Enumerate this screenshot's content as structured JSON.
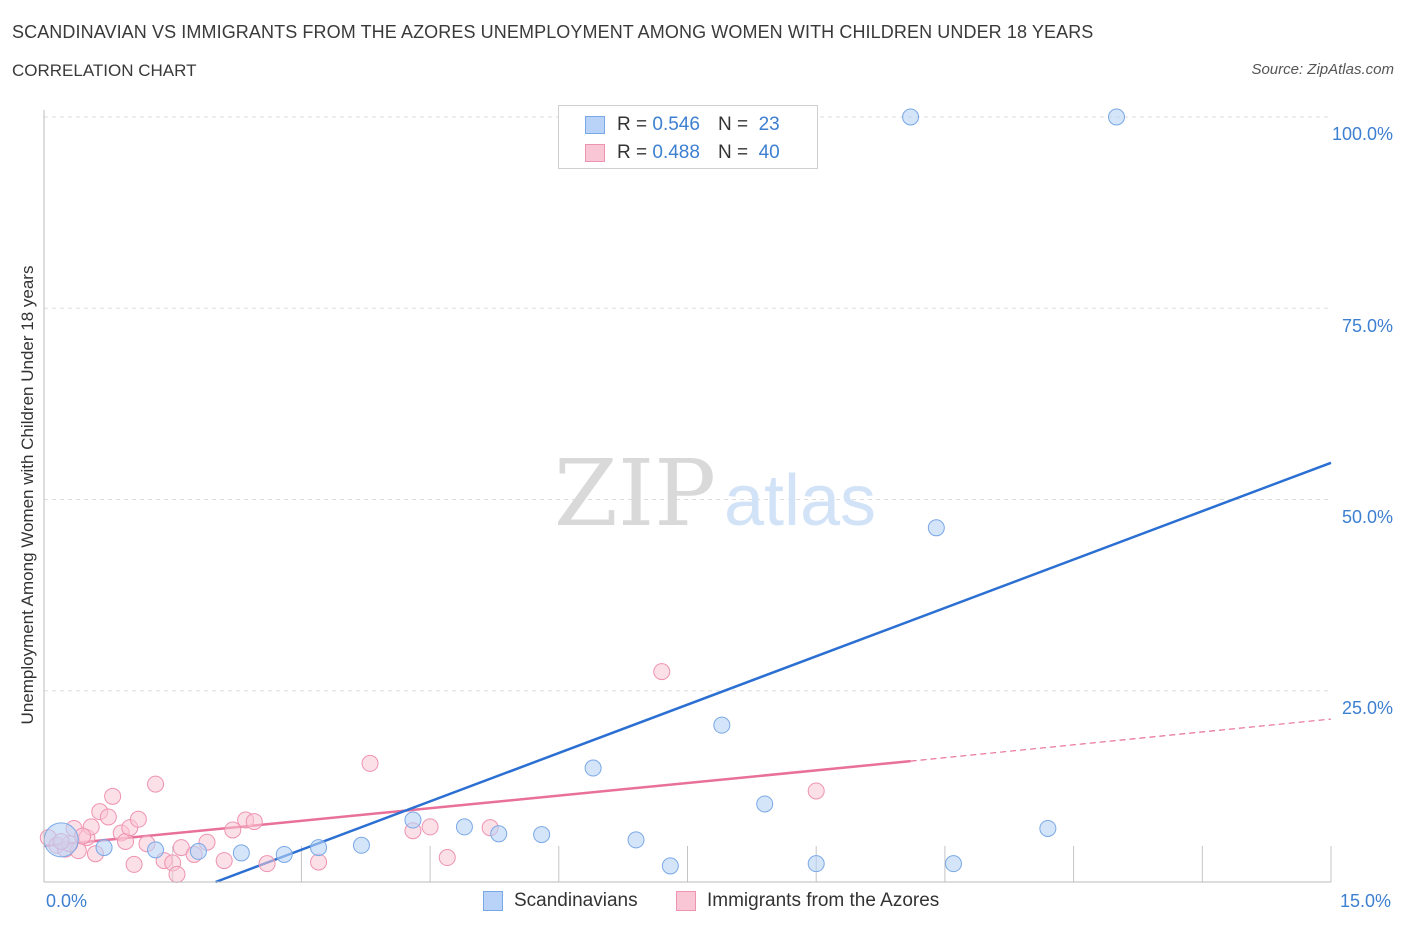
{
  "header": {
    "title": "SCANDINAVIAN VS IMMIGRANTS FROM THE AZORES UNEMPLOYMENT AMONG WOMEN WITH CHILDREN UNDER 18 YEARS",
    "subtitle": "CORRELATION CHART",
    "source": "Source: ZipAtlas.com"
  },
  "watermark": {
    "zip": "ZIP",
    "atlas": "atlas"
  },
  "legend": {
    "rows": [
      {
        "r_label": "R =",
        "r_value": "0.546",
        "n_label": "N =",
        "n_value": "23"
      },
      {
        "r_label": "R =",
        "r_value": "0.488",
        "n_label": "N =",
        "n_value": "40"
      }
    ]
  },
  "colors": {
    "blue_fill": "#b8d3f7",
    "blue_stroke": "#7aa8e6",
    "blue_line": "#2a6fd1",
    "pink_fill": "#f9c6d6",
    "pink_stroke": "#ee93b1",
    "pink_line": "#e8709a",
    "grid": "#dddddd",
    "axis_text": "#3d7fd1"
  },
  "chart_data": {
    "type": "scatter",
    "xlabel": "",
    "ylabel": "Unemployment Among Women with Children Under 18 years",
    "xlim": [
      0,
      15
    ],
    "ylim": [
      0,
      100
    ],
    "x_tick_labels": [
      "0.0%",
      "15.0%"
    ],
    "y_tick_labels": [
      "100.0%",
      "75.0%",
      "50.0%",
      "25.0%"
    ],
    "y_ticks": [
      100,
      75,
      50,
      25
    ],
    "grid": true,
    "legend_position": "bottom",
    "series": [
      {
        "name": "Scandinavians",
        "color": "#7aa8e6",
        "points": [
          [
            0.2,
            5.5
          ],
          [
            0.7,
            4.5
          ],
          [
            1.3,
            4.2
          ],
          [
            1.8,
            4.0
          ],
          [
            2.3,
            3.8
          ],
          [
            2.8,
            3.6
          ],
          [
            3.2,
            4.5
          ],
          [
            3.7,
            4.8
          ],
          [
            4.3,
            8.1
          ],
          [
            4.9,
            7.2
          ],
          [
            5.3,
            6.3
          ],
          [
            5.8,
            6.2
          ],
          [
            6.4,
            14.9
          ],
          [
            6.9,
            5.5
          ],
          [
            7.3,
            2.1
          ],
          [
            7.9,
            20.5
          ],
          [
            8.4,
            10.2
          ],
          [
            9.0,
            2.4
          ],
          [
            10.1,
            100.0
          ],
          [
            10.4,
            46.3
          ],
          [
            10.6,
            2.4
          ],
          [
            11.7,
            7.0
          ],
          [
            12.5,
            100.0
          ]
        ],
        "trendline": {
          "x": [
            2.0,
            15.0
          ],
          "y": [
            0.0,
            54.8
          ]
        }
      },
      {
        "name": "Immigrants from the Azores",
        "color": "#ee93b1",
        "points": [
          [
            0.05,
            5.8
          ],
          [
            0.15,
            4.8
          ],
          [
            0.25,
            4.3
          ],
          [
            0.35,
            7.0
          ],
          [
            0.4,
            4.1
          ],
          [
            0.5,
            5.8
          ],
          [
            0.55,
            7.2
          ],
          [
            0.6,
            3.7
          ],
          [
            0.65,
            9.2
          ],
          [
            0.75,
            8.5
          ],
          [
            0.8,
            11.2
          ],
          [
            0.9,
            6.4
          ],
          [
            0.95,
            5.3
          ],
          [
            1.0,
            7.1
          ],
          [
            1.05,
            2.3
          ],
          [
            1.1,
            8.2
          ],
          [
            1.2,
            5.0
          ],
          [
            1.3,
            12.8
          ],
          [
            1.4,
            2.8
          ],
          [
            1.5,
            2.5
          ],
          [
            1.55,
            1.0
          ],
          [
            1.6,
            4.5
          ],
          [
            1.75,
            3.6
          ],
          [
            1.9,
            5.2
          ],
          [
            2.1,
            2.8
          ],
          [
            2.2,
            6.8
          ],
          [
            2.35,
            8.1
          ],
          [
            2.45,
            7.9
          ],
          [
            2.6,
            2.4
          ],
          [
            3.2,
            2.6
          ],
          [
            3.8,
            15.5
          ],
          [
            4.3,
            6.7
          ],
          [
            4.5,
            7.2
          ],
          [
            4.7,
            3.2
          ],
          [
            5.2,
            7.1
          ],
          [
            7.2,
            27.5
          ],
          [
            9.0,
            11.9
          ],
          [
            0.3,
            5.0
          ],
          [
            0.45,
            6.0
          ],
          [
            0.2,
            5.3
          ]
        ],
        "trendline": {
          "x": [
            0.0,
            10.1
          ],
          "y": [
            4.7,
            15.8
          ]
        },
        "trendline_dashed": {
          "x": [
            10.1,
            15.0
          ],
          "y": [
            15.8,
            21.3
          ]
        }
      }
    ]
  }
}
